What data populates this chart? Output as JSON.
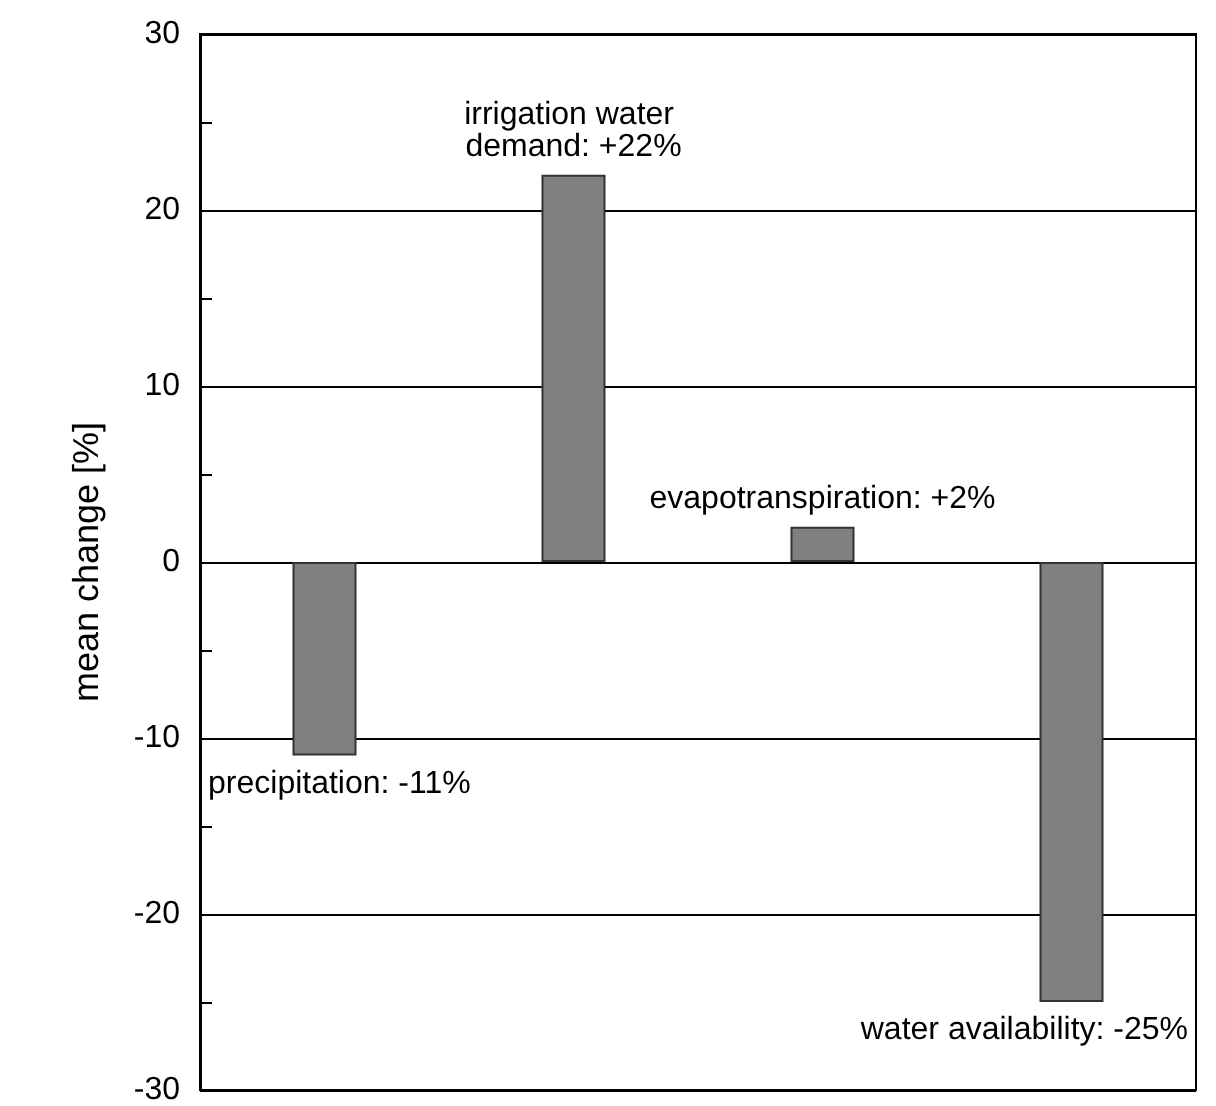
{
  "chart_data": {
    "type": "bar",
    "ylabel": "mean change [%]",
    "categories": [
      null,
      null,
      null,
      null
    ],
    "values": [
      -11,
      22,
      2,
      -25
    ],
    "value_labels": [
      "precipitation: -11%",
      "irrigation water demand: +22%",
      "evapotranspiration: +2%",
      "water availability: -25%"
    ],
    "color": "#808080",
    "ylim": [
      -30,
      30
    ],
    "yticks": [
      -30,
      {
        "value": -25,
        "label": null
      },
      -20,
      {
        "value": -15,
        "label": null
      },
      -10,
      {
        "value": -5,
        "label": null
      },
      0,
      {
        "value": 5,
        "label": null
      },
      10,
      {
        "value": 15,
        "label": null
      },
      20,
      {
        "value": 25,
        "label": null
      },
      30
    ],
    "grid": "y"
  }
}
